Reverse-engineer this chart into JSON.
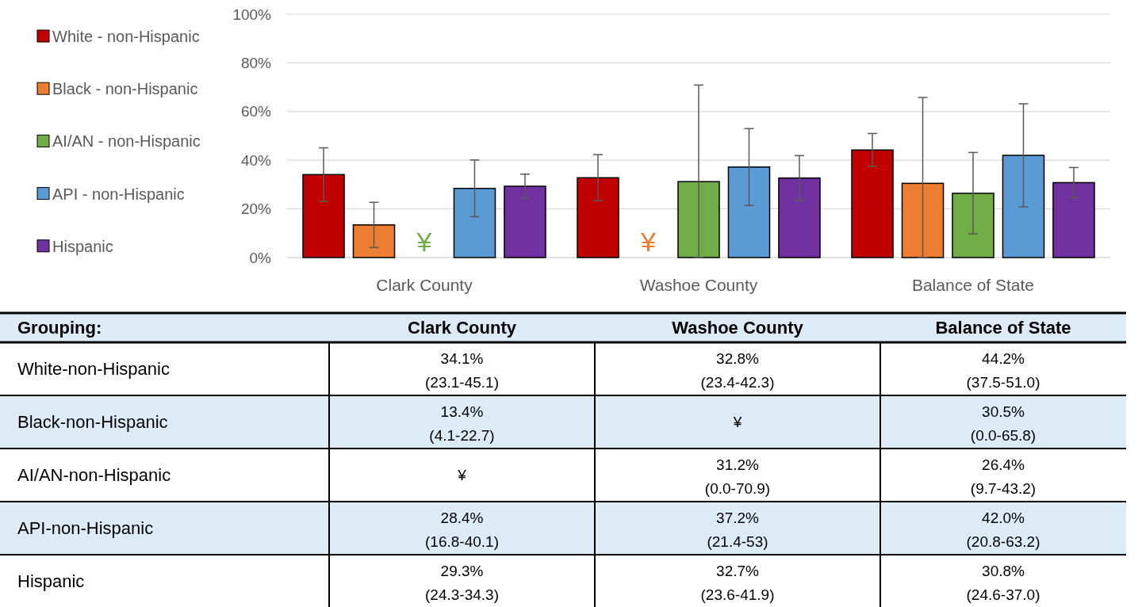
{
  "chart_data": {
    "type": "bar",
    "categories": [
      "Clark County",
      "Washoe County",
      "Balance of State"
    ],
    "series": [
      {
        "name": "White - non-Hispanic",
        "color": "#c00000",
        "values": [
          34.1,
          32.8,
          44.2
        ],
        "errors": [
          [
            23.1,
            45.1
          ],
          [
            23.4,
            42.3
          ],
          [
            37.5,
            51.0
          ]
        ],
        "value_labels": [
          "34.1%\n(23.1-45.1)",
          "32.8%\n(23.4-42.3)",
          "44.2%\n(37.5-51.0)"
        ]
      },
      {
        "name": "Black - non-Hispanic",
        "color": "#ed7d31",
        "values": [
          13.4,
          null,
          30.5
        ],
        "errors": [
          [
            4.1,
            22.7
          ],
          null,
          [
            0.0,
            65.8
          ]
        ],
        "value_labels": [
          "13.4%\n(4.1-22.7)",
          "¥",
          "30.5%\n(0.0-65.8)"
        ]
      },
      {
        "name": "AI/AN - non-Hispanic",
        "color": "#70ad47",
        "values": [
          null,
          31.2,
          26.4
        ],
        "errors": [
          null,
          [
            0.0,
            70.9
          ],
          [
            9.7,
            43.2
          ]
        ],
        "value_labels": [
          "¥",
          "31.2%\n(0.0-70.9)",
          "26.4%\n(9.7-43.2)"
        ]
      },
      {
        "name": "API - non-Hispanic",
        "color": "#5b9bd5",
        "values": [
          28.4,
          37.2,
          42.0
        ],
        "errors": [
          [
            16.8,
            40.1
          ],
          [
            21.4,
            53
          ],
          [
            20.8,
            63.2
          ]
        ],
        "value_labels": [
          "28.4%\n(16.8-40.1)",
          "37.2%\n(21.4-53)",
          "42.0%\n(20.8-63.2)"
        ]
      },
      {
        "name": "Hispanic",
        "color": "#7030a0",
        "values": [
          29.3,
          32.7,
          30.8
        ],
        "errors": [
          [
            24.3,
            34.3
          ],
          [
            23.6,
            41.9
          ],
          [
            24.6,
            37.0
          ]
        ],
        "value_labels": [
          "29.3%\n(24.3-34.3)",
          "32.7%\n(23.6-41.9)",
          "30.8%\n(24.6-37.0)"
        ]
      }
    ],
    "ylim": [
      0,
      100
    ],
    "yticks": [
      {
        "value": 0,
        "label": "0%"
      },
      {
        "value": 20,
        "label": "20%"
      },
      {
        "value": 40,
        "label": "40%"
      },
      {
        "value": 60,
        "label": "60%"
      },
      {
        "value": 80,
        "label": "80%"
      },
      {
        "value": 100,
        "label": "100%"
      }
    ],
    "grid": "y",
    "legend": "left",
    "annotations": [
      "Grouping:",
      "White-non-Hispanic",
      "Black-non-Hispanic",
      "AI/AN-non-Hispanic",
      "API-non-Hispanic",
      "Hispanic"
    ]
  }
}
